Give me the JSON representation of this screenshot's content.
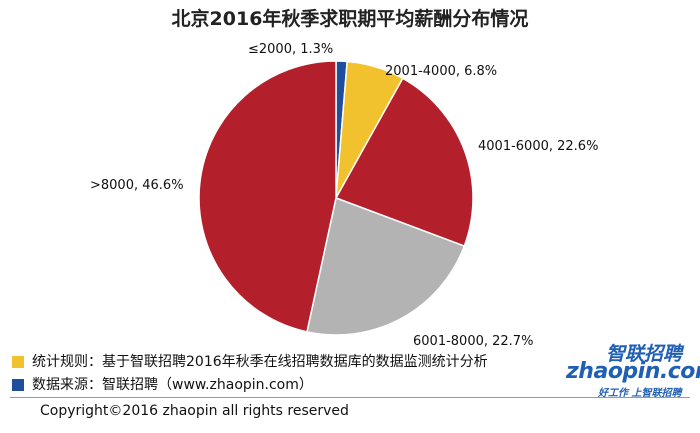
{
  "chart_data": {
    "type": "pie",
    "title": "北京2016年秋季求职期平均薪酬分布情况",
    "categories": [
      "≤2000",
      "2001-4000",
      "4001-6000",
      "6001-8000",
      ">8000"
    ],
    "values": [
      1.3,
      6.8,
      22.6,
      22.7,
      46.6
    ],
    "value_labels": [
      "1.3%",
      "6.8%",
      "22.6%",
      "22.7%",
      "46.6%"
    ],
    "colors": [
      "#1f4e9c",
      "#f2c12e",
      "#b31f2a",
      "#b3b3b3",
      "#b31f2a"
    ],
    "start": "top",
    "direction": "clockwise"
  },
  "notes": [
    {
      "text": "统计规则：基于智联招聘2016年秋季在线招聘数据库的数据监测统计分析",
      "color": "#f2c12e"
    },
    {
      "text": "数据来源：智联招聘（www.zhaopin.com）",
      "color": "#1f4e9c"
    }
  ],
  "logo": {
    "name": "智联招聘",
    "site": "zhaopin.com",
    "slogan": "好工作 上智联招聘"
  },
  "copyright": "Copyright©2016 zhaopin all rights reserved"
}
